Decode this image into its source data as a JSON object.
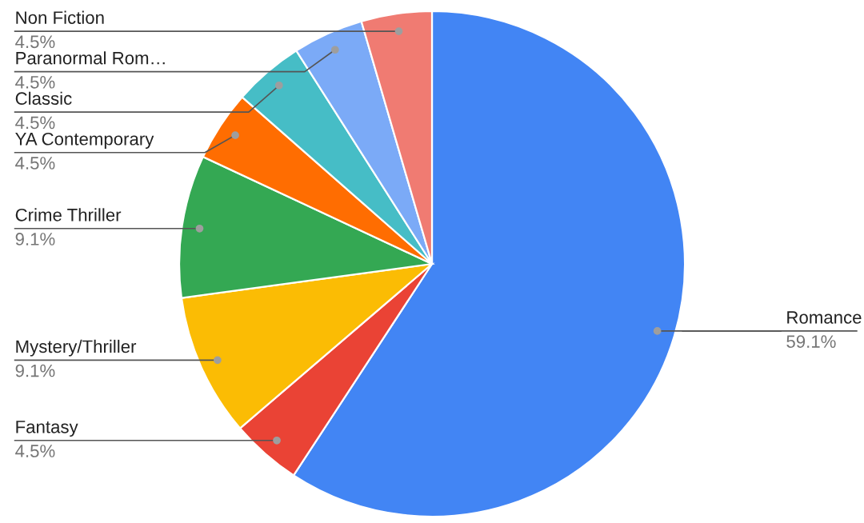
{
  "chart_data": {
    "type": "pie",
    "categories": [
      "Romance",
      "Fantasy",
      "Mystery/Thriller",
      "Crime Thriller",
      "YA Contemporary",
      "Classic",
      "Paranormal Rom…",
      "Non Fiction"
    ],
    "values": [
      59.1,
      4.5,
      9.1,
      9.1,
      4.5,
      4.5,
      4.5,
      4.5
    ],
    "value_labels": [
      "59.1%",
      "4.5%",
      "9.1%",
      "9.1%",
      "4.5%",
      "4.5%",
      "4.5%",
      "4.5%"
    ],
    "colors": [
      "#4285f4",
      "#ea4335",
      "#fbbc04",
      "#34a853",
      "#ff6d01",
      "#46bdc6",
      "#7baaf7",
      "#f07b72"
    ],
    "legend": false
  }
}
